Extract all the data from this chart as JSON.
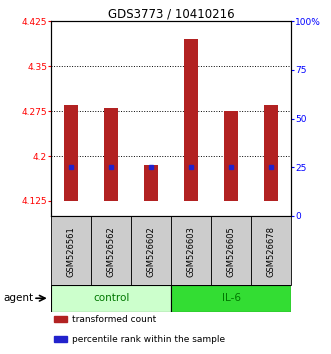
{
  "title": "GDS3773 / 10410216",
  "samples": [
    "GSM526561",
    "GSM526562",
    "GSM526602",
    "GSM526603",
    "GSM526605",
    "GSM526678"
  ],
  "bar_values": [
    4.285,
    4.28,
    4.185,
    4.395,
    4.275,
    4.285
  ],
  "percentile_values": [
    25,
    25,
    25,
    25,
    25,
    25
  ],
  "bar_bottom": 4.125,
  "ylim_left": [
    4.1,
    4.425
  ],
  "ylim_right": [
    0,
    100
  ],
  "yticks_left": [
    4.125,
    4.2,
    4.275,
    4.35,
    4.425
  ],
  "yticks_right": [
    0,
    25,
    50,
    75,
    100
  ],
  "ytick_labels_left": [
    "4.125",
    "4.2",
    "4.275",
    "4.35",
    "4.425"
  ],
  "ytick_labels_right": [
    "0",
    "25",
    "50",
    "75",
    "100%"
  ],
  "hlines": [
    4.2,
    4.275,
    4.35
  ],
  "bar_color": "#b22222",
  "percentile_color": "#2222cc",
  "group_colors": {
    "control": "#ccffcc",
    "IL-6": "#33dd33"
  },
  "group_label_color": "#007700",
  "bar_width": 0.35,
  "agent_label": "agent",
  "control_indices": [
    0,
    1,
    2
  ],
  "il6_indices": [
    3,
    4,
    5
  ],
  "legend_items": [
    {
      "color": "#b22222",
      "label": "transformed count"
    },
    {
      "color": "#2222cc",
      "label": "percentile rank within the sample"
    }
  ]
}
